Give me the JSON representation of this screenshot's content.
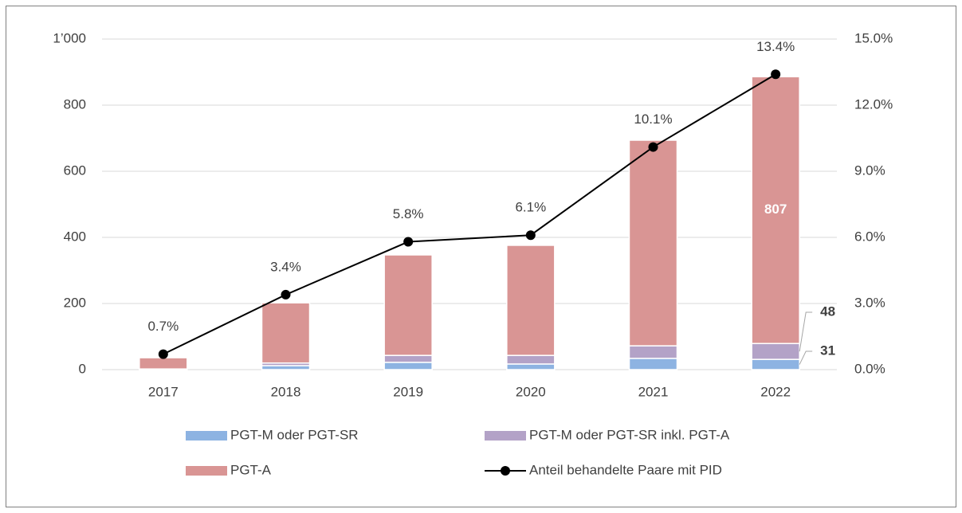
{
  "chart_data": {
    "type": "bar",
    "stacked": true,
    "categories": [
      "2017",
      "2018",
      "2019",
      "2020",
      "2021",
      "2022"
    ],
    "series": [
      {
        "name": "PGT-M oder PGT-SR",
        "color": "#8db3e2",
        "values": [
          2,
          12,
          22,
          17,
          34,
          31
        ],
        "value_labels": [
          null,
          null,
          null,
          null,
          null,
          "31"
        ]
      },
      {
        "name": "PGT-M oder PGT-SR inkl. PGT-A",
        "color": "#b3a2c7",
        "values": [
          0,
          8,
          21,
          26,
          38,
          48
        ],
        "value_labels": [
          null,
          null,
          null,
          null,
          null,
          "48"
        ]
      },
      {
        "name": "PGT-A",
        "color": "#d99594",
        "values": [
          34,
          182,
          304,
          333,
          622,
          807
        ],
        "value_labels": [
          null,
          null,
          null,
          null,
          null,
          "807"
        ]
      },
      {
        "name": "Anteil behandelte Paare mit PID",
        "type": "line",
        "axis": "y2",
        "color": "#000000",
        "values": [
          0.7,
          3.4,
          5.8,
          6.1,
          10.1,
          13.4
        ],
        "value_labels": [
          "0.7%",
          "3.4%",
          "5.8%",
          "6.1%",
          "10.1%",
          "13.4%"
        ]
      }
    ],
    "ylim": [
      0,
      1000
    ],
    "yticks": [
      0,
      200,
      400,
      600,
      800,
      {
        "value": 1000,
        "label": "1’000"
      }
    ],
    "y2lim": [
      0,
      15
    ],
    "y2ticks": [
      {
        "value": 0,
        "label": "0.0%"
      },
      {
        "value": 3,
        "label": "3.0%"
      },
      {
        "value": 6,
        "label": "6.0%"
      },
      {
        "value": 9,
        "label": "9.0%"
      },
      {
        "value": 12,
        "label": "12.0%"
      },
      {
        "value": 15,
        "label": "15.0%"
      }
    ],
    "grid": true,
    "legend": "bottom"
  }
}
